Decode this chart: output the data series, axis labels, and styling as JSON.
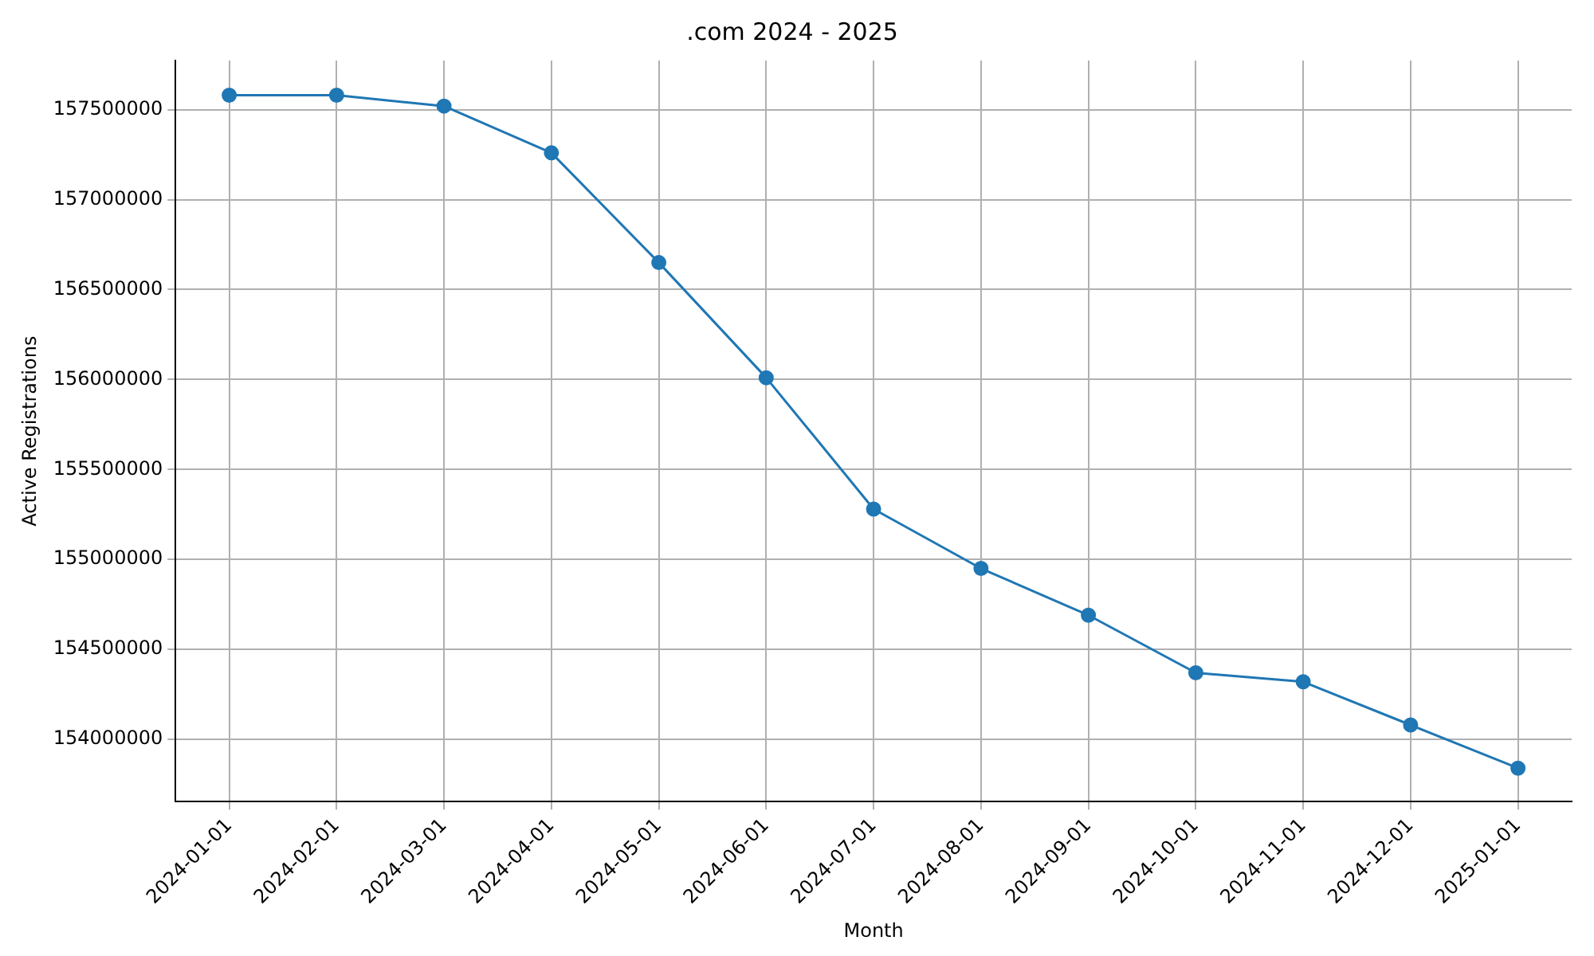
{
  "chart_data": {
    "type": "line",
    "title": ".com 2024 - 2025",
    "xlabel": "Month",
    "ylabel": "Active Registrations",
    "categories": [
      "2024-01-01",
      "2024-02-01",
      "2024-03-01",
      "2024-04-01",
      "2024-05-01",
      "2024-06-01",
      "2024-07-01",
      "2024-08-01",
      "2024-09-01",
      "2024-10-01",
      "2024-11-01",
      "2024-12-01",
      "2025-01-01"
    ],
    "series": [
      {
        "color": "#1f77b4",
        "values": [
          157580000,
          157580000,
          157520000,
          157260000,
          156650000,
          156010000,
          155280000,
          154950000,
          154690000,
          154370000,
          154320000,
          154080000,
          153840000
        ]
      }
    ],
    "ylim": [
      153654000,
      157773000
    ],
    "yticks": [
      154000000,
      154500000,
      155000000,
      155500000,
      156000000,
      156500000,
      157000000,
      157500000
    ],
    "grid": true,
    "legend": false,
    "marker": "circle",
    "line_style": "solid"
  }
}
